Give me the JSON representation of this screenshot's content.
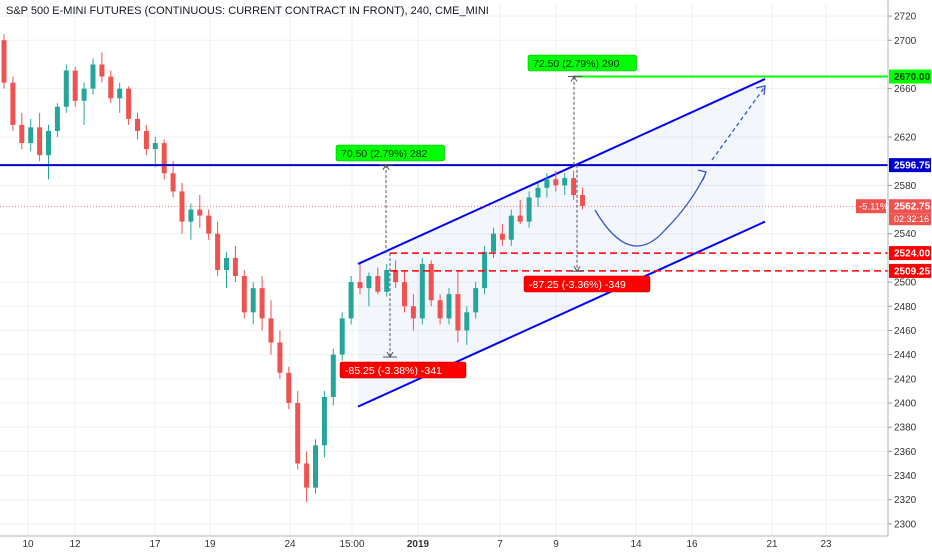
{
  "header": {
    "title": "S&P 500 E-MINI FUTURES (CONTINUOUS: CURRENT CONTRACT IN FRONT), 240, CME_MINI"
  },
  "colors": {
    "up": "#26a69a",
    "down": "#ef5350",
    "channel": "#0000ff",
    "target": "#00ff00",
    "support": "#ff0000",
    "grid": "#eef0f3"
  },
  "chart_data": {
    "type": "candlestick",
    "interval": "240",
    "ylim": [
      2290,
      2730
    ],
    "y_ticks": [
      2300,
      2320,
      2340,
      2360,
      2380,
      2400,
      2420,
      2440,
      2460,
      2480,
      2500,
      2540,
      2580,
      2620,
      2660,
      2700,
      2720
    ],
    "x_ticks": [
      "10",
      "12",
      "17",
      "19",
      "24",
      "15:00",
      "2019",
      "7",
      "9",
      "14",
      "16",
      "21",
      "23"
    ],
    "price_labels": [
      {
        "text": "2670.00",
        "kind": "target"
      },
      {
        "text": "2596.75",
        "kind": "resistance"
      },
      {
        "text": "2562.75",
        "kind": "last",
        "prefix": "-5.11%",
        "countdown": "02:32:16"
      },
      {
        "text": "2524.00",
        "kind": "support"
      },
      {
        "text": "2509.25",
        "kind": "support"
      }
    ],
    "annotations": [
      {
        "text": "70.50 (2.79%) 282",
        "kind": "up"
      },
      {
        "text": "72.50 (2.79%) 290",
        "kind": "up"
      },
      {
        "text": "-85.25 (-3.38%) -341",
        "kind": "down"
      },
      {
        "text": "-87.25 (-3.36%) -349",
        "kind": "down"
      }
    ],
    "horizontal_lines": [
      {
        "price": 2670,
        "kind": "target"
      },
      {
        "price": 2596.75,
        "kind": "resistance"
      },
      {
        "price": 2524,
        "kind": "support"
      },
      {
        "price": 2509.25,
        "kind": "support"
      },
      {
        "price": 2562.75,
        "kind": "last"
      }
    ],
    "channel": {
      "upper": [
        [
          0,
          2515
        ],
        [
          73,
          2668
        ]
      ],
      "lower": [
        [
          0,
          2397
        ],
        [
          73,
          2550
        ]
      ],
      "projection": [
        [
          0,
          2597
        ],
        [
          73,
          2663
        ]
      ]
    },
    "series": [
      {
        "values": [
          [
            2700,
            2705,
            2660,
            2665
          ],
          [
            2665,
            2670,
            2625,
            2630
          ],
          [
            2630,
            2640,
            2610,
            2615
          ],
          [
            2615,
            2635,
            2608,
            2628
          ],
          [
            2628,
            2640,
            2600,
            2605
          ],
          [
            2605,
            2630,
            2585,
            2625
          ],
          [
            2625,
            2648,
            2620,
            2645
          ],
          [
            2645,
            2680,
            2640,
            2675
          ],
          [
            2675,
            2678,
            2645,
            2650
          ],
          [
            2650,
            2665,
            2630,
            2660
          ],
          [
            2660,
            2685,
            2655,
            2680
          ],
          [
            2680,
            2690,
            2665,
            2670
          ],
          [
            2670,
            2675,
            2648,
            2652
          ],
          [
            2652,
            2665,
            2640,
            2660
          ],
          [
            2660,
            2662,
            2630,
            2635
          ],
          [
            2635,
            2640,
            2618,
            2625
          ],
          [
            2625,
            2630,
            2605,
            2610
          ],
          [
            2610,
            2620,
            2595,
            2615
          ],
          [
            2615,
            2618,
            2585,
            2590
          ],
          [
            2590,
            2600,
            2570,
            2575
          ],
          [
            2575,
            2582,
            2540,
            2550
          ],
          [
            2550,
            2565,
            2535,
            2560
          ],
          [
            2560,
            2572,
            2545,
            2555
          ],
          [
            2555,
            2560,
            2535,
            2540
          ],
          [
            2540,
            2550,
            2505,
            2510
          ],
          [
            2510,
            2525,
            2495,
            2520
          ],
          [
            2520,
            2530,
            2500,
            2505
          ],
          [
            2505,
            2510,
            2470,
            2475
          ],
          [
            2475,
            2500,
            2465,
            2495
          ],
          [
            2495,
            2505,
            2460,
            2470
          ],
          [
            2470,
            2485,
            2440,
            2450
          ],
          [
            2450,
            2460,
            2420,
            2425
          ],
          [
            2425,
            2430,
            2395,
            2400
          ],
          [
            2400,
            2410,
            2345,
            2350
          ],
          [
            2350,
            2360,
            2318,
            2330
          ],
          [
            2330,
            2370,
            2325,
            2365
          ],
          [
            2365,
            2410,
            2355,
            2405
          ],
          [
            2405,
            2445,
            2398,
            2440
          ],
          [
            2440,
            2475,
            2435,
            2470
          ],
          [
            2470,
            2505,
            2465,
            2500
          ],
          [
            2500,
            2515,
            2490,
            2495
          ],
          [
            2495,
            2508,
            2480,
            2505
          ],
          [
            2505,
            2512,
            2490,
            2492
          ],
          [
            2492,
            2515,
            2488,
            2510
          ],
          [
            2510,
            2518,
            2495,
            2500
          ],
          [
            2500,
            2510,
            2475,
            2480
          ],
          [
            2480,
            2490,
            2460,
            2470
          ],
          [
            2470,
            2520,
            2465,
            2515
          ],
          [
            2515,
            2518,
            2480,
            2485
          ],
          [
            2485,
            2490,
            2465,
            2470
          ],
          [
            2470,
            2495,
            2465,
            2490
          ],
          [
            2490,
            2510,
            2450,
            2460
          ],
          [
            2460,
            2480,
            2448,
            2475
          ],
          [
            2475,
            2500,
            2470,
            2495
          ],
          [
            2495,
            2530,
            2490,
            2525
          ],
          [
            2525,
            2545,
            2520,
            2540
          ],
          [
            2540,
            2548,
            2530,
            2535
          ],
          [
            2535,
            2560,
            2530,
            2555
          ],
          [
            2555,
            2568,
            2548,
            2550
          ],
          [
            2550,
            2575,
            2545,
            2570
          ],
          [
            2570,
            2582,
            2562,
            2578
          ],
          [
            2578,
            2590,
            2570,
            2585
          ],
          [
            2585,
            2592,
            2575,
            2580
          ],
          [
            2580,
            2590,
            2572,
            2586
          ],
          [
            2586,
            2592,
            2568,
            2572
          ],
          [
            2572,
            2578,
            2560,
            2563
          ]
        ]
      }
    ]
  }
}
